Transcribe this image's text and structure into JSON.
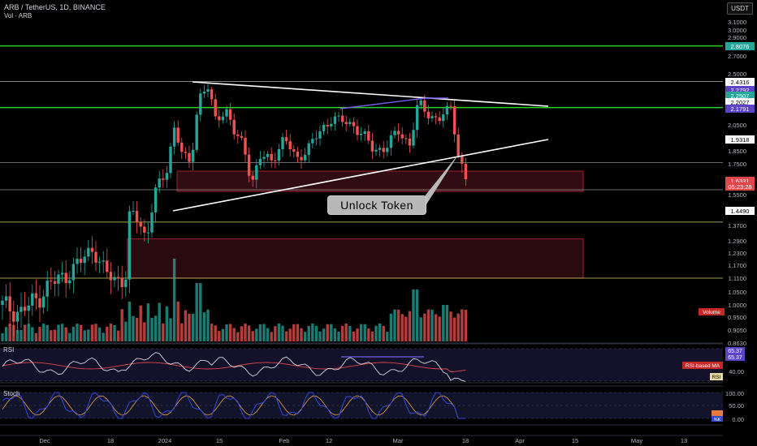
{
  "header": {
    "symbol_text": "ARB / TetherUS, 1D, BINANCE",
    "volume_label": "Vol · ARB",
    "currency_button": "USDT"
  },
  "annotation": {
    "text": "Unlock Token"
  },
  "price_axis": {
    "ticks": [
      "3.1000",
      "3.0000",
      "2.9000",
      "2.7000",
      "2.5000",
      "2.0500",
      "1.8500",
      "1.7500",
      "1.5500",
      "1.3700",
      "1.2900",
      "1.2300",
      "1.1700",
      "1.1100",
      "1.0500",
      "1.0000",
      "0.9500",
      "0.9050",
      "0.8630"
    ],
    "badges": [
      {
        "label": "2.8076",
        "color": "#26a69a"
      },
      {
        "label": "2.4316",
        "color": "#d1d4dc"
      },
      {
        "label": "2.2792",
        "color": "#5b43c8"
      },
      {
        "label": "2.2507",
        "color": "#26a69a"
      },
      {
        "label": "2.2027",
        "color": "#d1d4dc"
      },
      {
        "label": "2.1791",
        "color": "#5b43c8"
      },
      {
        "label": "1.9318",
        "color": "#d1d4dc"
      },
      {
        "label": "1.6331",
        "color": "#e0464a"
      },
      {
        "label": "05:23:28",
        "color": "#e0464a"
      },
      {
        "label": "1.4490",
        "color": "#d1d4dc"
      }
    ]
  },
  "panes": {
    "volume": {
      "badge": "Volume"
    },
    "rsi": {
      "label": "RSI",
      "badges": [
        "65.37",
        "65.37",
        "RSI-based MA",
        "RSI"
      ],
      "ticks": [
        "40.00"
      ]
    },
    "stoch": {
      "label": "Stoch",
      "ticks": [
        "100.00",
        "50.00",
        "0.00"
      ],
      "badges": [
        "%K"
      ]
    }
  },
  "time_axis": {
    "ticks": [
      "Dec",
      "18",
      "2024",
      "15",
      "Feb",
      "12",
      "Mar",
      "18",
      "Apr",
      "15",
      "May",
      "13"
    ]
  },
  "colors": {
    "up": "#26a69a",
    "down": "#ef5350",
    "support": "#2ad32a",
    "zone": "#5a1620",
    "rsi": "#d1d4dc",
    "rsi_ma": "#e0464a",
    "stoch_k": "#3346d6",
    "stoch_d": "#e8a040",
    "trendline": "#ffffff",
    "purple": "#7b5cf0"
  },
  "chart_data": {
    "type": "candlestick",
    "symbol": "ARB / TetherUS",
    "interval": "1D",
    "exchange": "BINANCE",
    "ylim": [
      0.86,
      3.1
    ],
    "horizontal_levels": [
      2.8076,
      2.4316,
      2.2507,
      1.9318,
      1.6331,
      1.449
    ],
    "last_price": 1.6331,
    "countdown": "05:23:28",
    "rsi_values": [
      "65.37",
      "65.37"
    ],
    "stoch_range": [
      0,
      100
    ],
    "x_ticks": [
      "Dec",
      "18",
      "2024",
      "15",
      "Feb",
      "12",
      "Mar",
      "18",
      "Apr",
      "15",
      "May",
      "13"
    ]
  }
}
